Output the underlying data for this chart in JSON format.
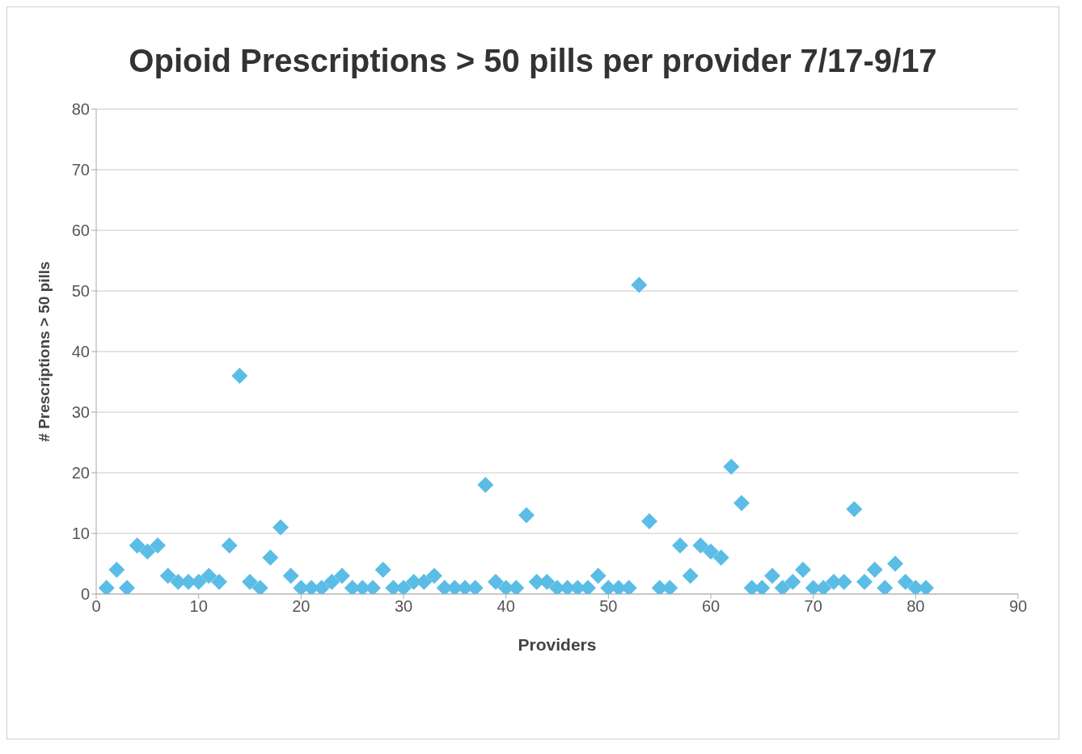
{
  "chart_data": {
    "type": "scatter",
    "title": "Opioid Prescriptions > 50 pills per provider 7/17-9/17",
    "xlabel": "Providers",
    "ylabel": "# Prescriptions > 50 pills",
    "x": [
      1,
      2,
      3,
      4,
      5,
      6,
      7,
      8,
      9,
      10,
      11,
      12,
      13,
      14,
      15,
      16,
      17,
      18,
      19,
      20,
      21,
      22,
      23,
      24,
      25,
      26,
      27,
      28,
      29,
      30,
      31,
      32,
      33,
      34,
      35,
      36,
      37,
      38,
      39,
      40,
      41,
      42,
      43,
      44,
      45,
      46,
      47,
      48,
      49,
      50,
      51,
      52,
      53,
      54,
      55,
      56,
      57,
      58,
      59,
      60,
      61,
      62,
      63,
      64,
      65,
      66,
      67,
      68,
      69,
      70,
      71,
      72,
      73,
      74,
      75,
      76,
      77,
      78,
      79,
      80,
      81
    ],
    "series": [
      {
        "color": "#5bbde6",
        "values": [
          1,
          4,
          1,
          8,
          7,
          8,
          3,
          2,
          2,
          2,
          3,
          2,
          8,
          36,
          2,
          1,
          6,
          11,
          3,
          1,
          1,
          1,
          2,
          3,
          1,
          1,
          1,
          4,
          1,
          1,
          2,
          2,
          3,
          1,
          1,
          1,
          1,
          18,
          2,
          1,
          1,
          13,
          2,
          2,
          1,
          1,
          1,
          1,
          3,
          1,
          1,
          1,
          51,
          12,
          1,
          1,
          8,
          3,
          8,
          7,
          6,
          21,
          15,
          1,
          1,
          3,
          1,
          2,
          4,
          1,
          1,
          2,
          2,
          14,
          2,
          4,
          1,
          5,
          2,
          1,
          1
        ]
      }
    ],
    "xlim": [
      0,
      90
    ],
    "xticks": [
      0,
      10,
      20,
      30,
      40,
      50,
      60,
      70,
      80,
      90
    ],
    "ylim": [
      0,
      80
    ],
    "yticks": [
      0,
      10,
      20,
      30,
      40,
      50,
      60,
      70,
      80
    ],
    "grid": "y",
    "marker": "diamond"
  }
}
